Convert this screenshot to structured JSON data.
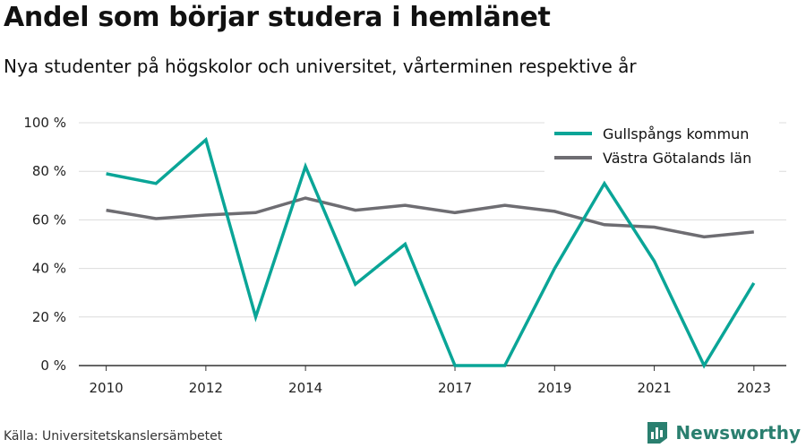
{
  "header": {
    "title": "Andel som börjar studera i hemlänet",
    "subtitle": "Nya studenter på högskolor och universitet, vårterminen respektive år"
  },
  "footer": {
    "source": "Källa: Universitetskanslersämbetet",
    "brand": "Newsworthy"
  },
  "colors": {
    "gullspang": "#0aa597",
    "vastra_gotaland": "#6e6d72",
    "grid": "#dcdcdc",
    "axis": "#333333",
    "brand": "#2a7f6f"
  },
  "chart_data": {
    "type": "line",
    "title": "Andel som börjar studera i hemlänet",
    "subtitle": "Nya studenter på högskolor och universitet, vårterminen respektive år",
    "x": [
      2010,
      2011,
      2012,
      2013,
      2014,
      2015,
      2016,
      2017,
      2018,
      2019,
      2020,
      2021,
      2022,
      2023
    ],
    "x_ticks": [
      2010,
      2012,
      2014,
      2017,
      2019,
      2021,
      2023
    ],
    "y_ticks": [
      0,
      20,
      40,
      60,
      80,
      100
    ],
    "y_tick_labels": [
      "0 %",
      "20 %",
      "40 %",
      "60 %",
      "80 %",
      "100 %"
    ],
    "ylim": [
      0,
      100
    ],
    "xlim": [
      2009.45,
      2023.65
    ],
    "grid": true,
    "legend_position": "top-right",
    "series": [
      {
        "name": "Gullspångs kommun",
        "color": "#0aa597",
        "values": [
          79,
          75,
          93,
          20,
          82,
          33.5,
          50,
          0,
          0,
          40,
          75,
          43,
          0,
          34
        ]
      },
      {
        "name": "Västra Götalands län",
        "color": "#6e6d72",
        "values": [
          64,
          60.5,
          62,
          63,
          69,
          64,
          66,
          63,
          66,
          63.5,
          58,
          57,
          53,
          55
        ]
      }
    ]
  }
}
